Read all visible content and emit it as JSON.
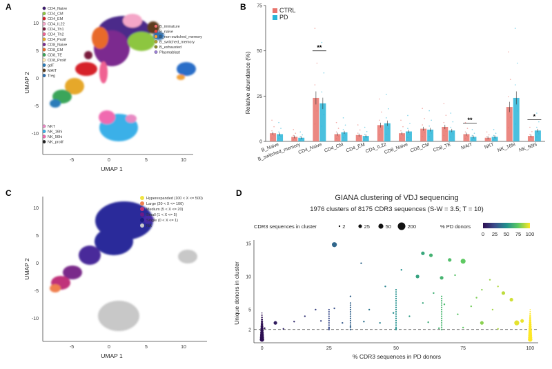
{
  "panels": {
    "a": "A",
    "b": "B",
    "c": "C",
    "d": "D"
  },
  "umap": {
    "x_label": "UMAP 1",
    "y_label": "UMAP 2",
    "x_ticks": [
      "-5",
      "0",
      "5",
      "10"
    ],
    "y_ticks": [
      "10",
      "5",
      "0",
      "-5",
      "-10"
    ]
  },
  "panel_a": {
    "legend_t": [
      {
        "label": "CD4_Naive",
        "color": "#3b1a6e"
      },
      {
        "label": "CD4_CM",
        "color": "#8dc63f"
      },
      {
        "label": "CD4_EM",
        "color": "#d6202a"
      },
      {
        "label": "CD4_IL22",
        "color": "#f4a6c8"
      },
      {
        "label": "CD4_Th1",
        "color": "#7a1f3d"
      },
      {
        "label": "CD4_Th2",
        "color": "#f06292"
      },
      {
        "label": "CD4_Prolif",
        "color": "#e6a82a"
      },
      {
        "label": "CD8_Naive",
        "color": "#7b2c8f"
      },
      {
        "label": "CD8_EM",
        "color": "#e86a2a"
      },
      {
        "label": "CD8_TE",
        "color": "#3aa55a"
      },
      {
        "label": "CD8_Prolif",
        "color": "#ffe8b0"
      },
      {
        "label": "gdT",
        "color": "#2b7bb9"
      },
      {
        "label": "MAIT",
        "color": "#5b3a1a"
      },
      {
        "label": "Treg",
        "color": "#2f6fb0"
      }
    ],
    "legend_b": [
      {
        "label": "B_immature",
        "color": "#f26a6a"
      },
      {
        "label": "B_naive",
        "color": "#e8423a"
      },
      {
        "label": "B_non-switched_memory",
        "color": "#f2a23a"
      },
      {
        "label": "B_switched_memory",
        "color": "#b0a030"
      },
      {
        "label": "B_exhausted",
        "color": "#8c8c30"
      },
      {
        "label": "Plasmablast",
        "color": "#9b7fd4"
      }
    ],
    "legend_nk": [
      {
        "label": "NKT",
        "color": "#e78ac3"
      },
      {
        "label": "NK_16hi",
        "color": "#3bb0e8"
      },
      {
        "label": "NK_56hi",
        "color": "#f06ab0"
      },
      {
        "label": "NK_prolif",
        "color": "#202020"
      }
    ]
  },
  "panel_b": {
    "legend": [
      {
        "label": "CTRL",
        "color": "#e8736c"
      },
      {
        "label": "PD",
        "color": "#2ab5d8"
      }
    ],
    "y_label": "Relative abundance (%)",
    "sig_markers": [
      "**",
      "**",
      "*"
    ]
  },
  "panel_c": {
    "legend": [
      {
        "label": "Hyperexpanded (100 < X <= 500)",
        "color": "#f0e442"
      },
      {
        "label": "Large (20 < X <= 100)",
        "color": "#f08050"
      },
      {
        "label": "Medium (5 < X <= 20)",
        "color": "#c0307a"
      },
      {
        "label": "Small (1 < X <= 5)",
        "color": "#6a1a8a"
      },
      {
        "label": "Single (0 < X <= 1)",
        "color": "#1a1a80"
      },
      {
        "label": "NA",
        "color": "#c8c8c8"
      }
    ]
  },
  "panel_d": {
    "title": "GIANA clustering of VDJ sequencing",
    "subtitle": "1976 clusters of 8175 CDR3 sequences (S-W = 3.5; T = 10)",
    "size_legend_title": "CDR3 sequences in cluster",
    "size_legend": [
      "2",
      "25",
      "50",
      "200"
    ],
    "color_legend_title": "% PD donors",
    "color_legend_ticks": [
      "0",
      "25",
      "50",
      "75",
      "100"
    ],
    "x_label": "% CDR3 sequences in PD donors",
    "y_label": "Unique donors in cluster"
  },
  "chart_data": [
    {
      "type": "bar",
      "panel": "B",
      "ylabel": "Relative abundance (%)",
      "ylim": [
        0,
        75
      ],
      "yticks": [
        0,
        25,
        50,
        75
      ],
      "categories": [
        "B_Naive",
        "B_switched_memory",
        "CD4_Naive",
        "CD4_CM",
        "CD4_EM",
        "CD4_IL22",
        "CD8_Naive",
        "CD8_CM",
        "CD8_TE",
        "MAIT",
        "NKT",
        "NK_16hi",
        "NK_56hi"
      ],
      "series": [
        {
          "name": "CTRL",
          "values": [
            4.5,
            2.5,
            24,
            4,
            3.5,
            9,
            4.5,
            7,
            8,
            4,
            2,
            19,
            3
          ]
        },
        {
          "name": "PD",
          "values": [
            4,
            2,
            21,
            5,
            3,
            10,
            5.5,
            6.5,
            6,
            2.5,
            2.5,
            24,
            6
          ]
        }
      ],
      "significance": [
        {
          "category": "CD4_Naive",
          "label": "**"
        },
        {
          "category": "MAIT",
          "label": "**"
        },
        {
          "category": "NK_56hi",
          "label": "*"
        }
      ]
    },
    {
      "type": "scatter",
      "panel": "D",
      "title": "GIANA clustering of VDJ sequencing",
      "xlabel": "% CDR3 sequences in PD donors",
      "ylabel": "Unique donors in cluster",
      "xlim": [
        -3,
        103
      ],
      "ylim": [
        0,
        15.5
      ],
      "xticks": [
        0,
        25,
        50,
        75,
        100
      ],
      "yticks": [
        2,
        5,
        10,
        15
      ],
      "reference_line_y": 2,
      "points": [
        {
          "x": 27,
          "y": 14.8,
          "size": 50,
          "pd": 35
        },
        {
          "x": 60,
          "y": 13.5,
          "size": 25,
          "pd": 60
        },
        {
          "x": 63,
          "y": 13.2,
          "size": 25,
          "pd": 65
        },
        {
          "x": 70,
          "y": 12.5,
          "size": 25,
          "pd": 70
        },
        {
          "x": 75,
          "y": 12.3,
          "size": 50,
          "pd": 75
        },
        {
          "x": 37,
          "y": 12.0,
          "size": 2,
          "pd": 35
        },
        {
          "x": 52,
          "y": 11.0,
          "size": 2,
          "pd": 50
        },
        {
          "x": 58,
          "y": 10.0,
          "size": 25,
          "pd": 58
        },
        {
          "x": 67,
          "y": 9.8,
          "size": 25,
          "pd": 66
        },
        {
          "x": 72,
          "y": 10.2,
          "size": 2,
          "pd": 72
        },
        {
          "x": 85,
          "y": 9.5,
          "size": 2,
          "pd": 85
        },
        {
          "x": 88,
          "y": 8.5,
          "size": 2,
          "pd": 88
        },
        {
          "x": 46,
          "y": 8.5,
          "size": 2,
          "pd": 45
        },
        {
          "x": 82,
          "y": 8.0,
          "size": 2,
          "pd": 82
        },
        {
          "x": 90,
          "y": 7.5,
          "size": 25,
          "pd": 90
        },
        {
          "x": 64,
          "y": 7.5,
          "size": 2,
          "pd": 64
        },
        {
          "x": 33,
          "y": 7.0,
          "size": 2,
          "pd": 33
        },
        {
          "x": 80,
          "y": 6.8,
          "size": 2,
          "pd": 80
        },
        {
          "x": 93,
          "y": 6.5,
          "size": 25,
          "pd": 93
        },
        {
          "x": 60,
          "y": 6.0,
          "size": 2,
          "pd": 60
        },
        {
          "x": 68,
          "y": 5.8,
          "size": 2,
          "pd": 68
        },
        {
          "x": 78,
          "y": 5.5,
          "size": 2,
          "pd": 78
        },
        {
          "x": 20,
          "y": 5.0,
          "size": 2,
          "pd": 20
        },
        {
          "x": 27,
          "y": 5.2,
          "size": 2,
          "pd": 27
        },
        {
          "x": 40,
          "y": 5.0,
          "size": 2,
          "pd": 40
        },
        {
          "x": 86,
          "y": 5.0,
          "size": 2,
          "pd": 86
        },
        {
          "x": 49,
          "y": 4.5,
          "size": 2,
          "pd": 49
        },
        {
          "x": 73,
          "y": 4.3,
          "size": 2,
          "pd": 73
        },
        {
          "x": 16,
          "y": 4.0,
          "size": 2,
          "pd": 16
        },
        {
          "x": 55,
          "y": 4.0,
          "size": 2,
          "pd": 55
        },
        {
          "x": 5,
          "y": 3.0,
          "size": 25,
          "pd": 5
        },
        {
          "x": 12,
          "y": 3.2,
          "size": 2,
          "pd": 12
        },
        {
          "x": 22,
          "y": 3.3,
          "size": 2,
          "pd": 22
        },
        {
          "x": 30,
          "y": 3.0,
          "size": 2,
          "pd": 30
        },
        {
          "x": 38,
          "y": 3.2,
          "size": 2,
          "pd": 38
        },
        {
          "x": 44,
          "y": 3.0,
          "size": 2,
          "pd": 44
        },
        {
          "x": 62,
          "y": 3.1,
          "size": 2,
          "pd": 62
        },
        {
          "x": 82,
          "y": 3.0,
          "size": 25,
          "pd": 82
        },
        {
          "x": 95,
          "y": 3.0,
          "size": 50,
          "pd": 96
        },
        {
          "x": 97,
          "y": 3.3,
          "size": 25,
          "pd": 97
        },
        {
          "x": 1,
          "y": 2.2,
          "size": 2,
          "pd": 1
        },
        {
          "x": 8,
          "y": 2.1,
          "size": 2,
          "pd": 8
        },
        {
          "x": 25,
          "y": 2.2,
          "size": 2,
          "pd": 25
        },
        {
          "x": 33,
          "y": 2.4,
          "size": 2,
          "pd": 33
        },
        {
          "x": 50,
          "y": 2.1,
          "size": 2,
          "pd": 50
        },
        {
          "x": 66,
          "y": 2.2,
          "size": 2,
          "pd": 66
        },
        {
          "x": 75,
          "y": 2.3,
          "size": 2,
          "pd": 75
        },
        {
          "x": 88,
          "y": 2.1,
          "size": 2,
          "pd": 88
        }
      ],
      "columns": [
        {
          "x": 0,
          "from": 0.5,
          "to": 4.5,
          "pd": 0
        },
        {
          "x": 25,
          "from": 2,
          "to": 5,
          "pd": 25
        },
        {
          "x": 33,
          "from": 2,
          "to": 6,
          "pd": 33
        },
        {
          "x": 50,
          "from": 2,
          "to": 8,
          "pd": 50
        },
        {
          "x": 67,
          "from": 2,
          "to": 7,
          "pd": 67
        },
        {
          "x": 100,
          "from": 0.5,
          "to": 5,
          "pd": 100
        }
      ]
    }
  ]
}
